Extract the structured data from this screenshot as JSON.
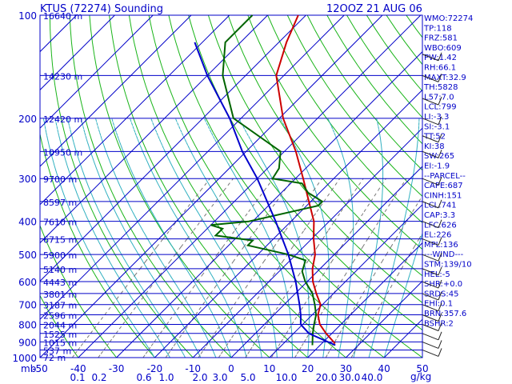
{
  "chart_data": {
    "type": "line",
    "title": "KTUS (72274) Sounding",
    "valid_time": "12OOZ 21 AUG 06",
    "skew_deg_per_px": 0.333,
    "x_axis": {
      "unit": "°C",
      "ticks": [
        -50,
        -40,
        -30,
        -20,
        -10,
        0,
        10,
        20,
        30,
        40,
        50
      ],
      "range_at_1000mb": [
        -50,
        50
      ]
    },
    "y_axis": {
      "unit": "mb",
      "scale": "log",
      "range": [
        1000,
        100
      ],
      "ticks": [
        100,
        200,
        300,
        400,
        500,
        600,
        700,
        800,
        900,
        1000
      ]
    },
    "height_labels": [
      {
        "p": 100,
        "label": "16640 m"
      },
      {
        "p": 150,
        "label": "14230 m"
      },
      {
        "p": 200,
        "label": "12420 m"
      },
      {
        "p": 250,
        "label": "10950 m"
      },
      {
        "p": 300,
        "label": "9700 m"
      },
      {
        "p": 350,
        "label": "8597 m"
      },
      {
        "p": 400,
        "label": "7610 m"
      },
      {
        "p": 450,
        "label": "6715 m"
      },
      {
        "p": 500,
        "label": "5900 m"
      },
      {
        "p": 550,
        "label": "5140 m"
      },
      {
        "p": 600,
        "label": "4443 m"
      },
      {
        "p": 650,
        "label": "3801 m"
      },
      {
        "p": 700,
        "label": "3187 m"
      },
      {
        "p": 750,
        "label": "2596 m"
      },
      {
        "p": 800,
        "label": "2044 m"
      },
      {
        "p": 850,
        "label": "1525 m"
      },
      {
        "p": 900,
        "label": "1015 m"
      },
      {
        "p": 950,
        "label": "537 m"
      },
      {
        "p": 1000,
        "label": "72 m"
      }
    ],
    "mixing_ratio_labels": [
      "0.1",
      "0.2",
      "0.6",
      "1.0",
      "2.0",
      "3.0",
      "5.0",
      "10.0",
      "20.0",
      "30.0",
      "40.0"
    ],
    "mixing_ratio_unit": "g/kg",
    "series": [
      {
        "color": "#cc0000",
        "points": [
          [
            910,
            23.5
          ],
          [
            850,
            18.5
          ],
          [
            800,
            14.5
          ],
          [
            750,
            11.5
          ],
          [
            700,
            9.5
          ],
          [
            650,
            5.5
          ],
          [
            600,
            1.5
          ],
          [
            550,
            -2
          ],
          [
            500,
            -5
          ],
          [
            450,
            -9.5
          ],
          [
            400,
            -14
          ],
          [
            350,
            -20.5
          ],
          [
            300,
            -28
          ],
          [
            250,
            -37
          ],
          [
            200,
            -49
          ],
          [
            150,
            -62
          ],
          [
            120,
            -68
          ],
          [
            100,
            -72
          ]
        ]
      },
      {
        "color": "#006400",
        "points": [
          [
            920,
            18
          ],
          [
            850,
            15
          ],
          [
            800,
            13
          ],
          [
            750,
            11
          ],
          [
            700,
            8
          ],
          [
            650,
            4.5
          ],
          [
            600,
            -0.5
          ],
          [
            560,
            -4
          ],
          [
            520,
            -6
          ],
          [
            500,
            -12
          ],
          [
            470,
            -25
          ],
          [
            455,
            -25
          ],
          [
            440,
            -36
          ],
          [
            420,
            -36
          ],
          [
            410,
            -40
          ],
          [
            400,
            -31
          ],
          [
            360,
            -17
          ],
          [
            350,
            -17
          ],
          [
            330,
            -23
          ],
          [
            310,
            -27
          ],
          [
            300,
            -36
          ],
          [
            280,
            -37
          ],
          [
            250,
            -41
          ],
          [
            200,
            -62
          ],
          [
            150,
            -76
          ],
          [
            120,
            -84
          ],
          [
            100,
            -84
          ]
        ]
      },
      {
        "color": "#0000cc",
        "points": [
          [
            920,
            24
          ],
          [
            850,
            14
          ],
          [
            800,
            9.5
          ],
          [
            750,
            7.0
          ],
          [
            700,
            4.0
          ],
          [
            600,
            -3
          ],
          [
            500,
            -12
          ],
          [
            400,
            -24
          ],
          [
            300,
            -40
          ],
          [
            250,
            -51
          ],
          [
            200,
            -63
          ],
          [
            150,
            -80
          ],
          [
            120,
            -92
          ]
        ]
      }
    ]
  },
  "indices": [
    "WMO:72274",
    "TP:118",
    "FRZ:581",
    "WBO:609",
    "PW:1.42",
    "RH:66.1",
    "MAXT:32.9",
    "TH:5828",
    "L57:7.0",
    "LCL:799",
    "LI:-3.3",
    "SI:-3.1",
    "TT:52",
    "KI:38",
    "SW:265",
    "EI:-1.9",
    "--PARCEL--",
    "CAPE:687",
    "CINH:151",
    "LCL:741",
    "CAP:3.3",
    "LFC:626",
    "EL:226",
    "MPL:136",
    "---WIND---",
    "STM:139/10",
    "HEL:-5",
    "SHR:+0.0",
    "SRDS:45",
    "EHI:0.1",
    "BRN:357.6",
    "BSHR:2"
  ]
}
